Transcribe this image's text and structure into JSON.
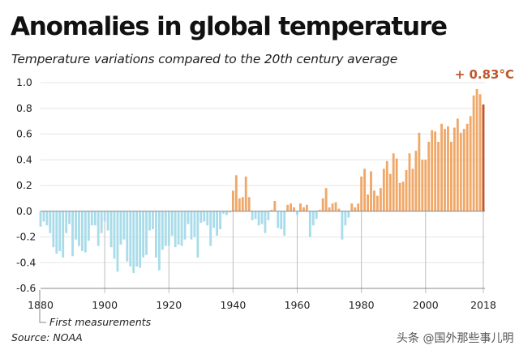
{
  "title": "Anomalies in global temperature",
  "subtitle": "Temperature variations compared to the 20th century average",
  "source": "Source: NOAA",
  "watermark": "头条 @国外那些事儿明",
  "colors": {
    "negative": "#a9dcea",
    "positive": "#f0a868",
    "latest": "#c0572c",
    "highlight_text": "#c0572c",
    "axis": "#888888",
    "grid": "#e6e6e6",
    "text": "#222222"
  },
  "chart_data": {
    "type": "bar",
    "title": "Anomalies in global temperature",
    "subtitle": "Temperature variations compared to the 20th century average",
    "xlabel": "",
    "ylabel": "",
    "unit": "°C",
    "ylim": [
      -0.6,
      1.0
    ],
    "yticks": [
      1.0,
      0.8,
      0.6,
      0.4,
      0.2,
      0.0,
      -0.2,
      -0.4,
      -0.6
    ],
    "ytick_labels": [
      "1.0",
      "0.8",
      "0.6",
      "0.4",
      "0.2",
      "0.0",
      "-0.2",
      "-0.4",
      "-0.6"
    ],
    "xticks": [
      1880,
      1900,
      1920,
      1940,
      1960,
      1980,
      2000,
      2018
    ],
    "xtick_labels": [
      "1880",
      "1900",
      "1920",
      "1940",
      "1960",
      "1980",
      "2000",
      "2018"
    ],
    "grid": false,
    "highlight": {
      "year": 2018,
      "label": "+ 0.83°C"
    },
    "annotation": {
      "year": 1880,
      "label": "First measurements"
    },
    "start_year": 1880,
    "end_year": 2018,
    "values": [
      -0.12,
      -0.08,
      -0.11,
      -0.17,
      -0.28,
      -0.33,
      -0.31,
      -0.36,
      -0.17,
      -0.1,
      -0.35,
      -0.22,
      -0.27,
      -0.31,
      -0.32,
      -0.23,
      -0.11,
      -0.11,
      -0.27,
      -0.17,
      -0.08,
      -0.15,
      -0.28,
      -0.37,
      -0.47,
      -0.26,
      -0.22,
      -0.39,
      -0.43,
      -0.48,
      -0.43,
      -0.44,
      -0.36,
      -0.34,
      -0.15,
      -0.14,
      -0.36,
      -0.46,
      -0.3,
      -0.27,
      -0.27,
      -0.19,
      -0.28,
      -0.26,
      -0.27,
      -0.22,
      -0.1,
      -0.22,
      -0.2,
      -0.36,
      -0.09,
      -0.08,
      -0.11,
      -0.27,
      -0.13,
      -0.19,
      -0.14,
      -0.02,
      -0.03,
      -0.01,
      0.16,
      0.28,
      0.1,
      0.11,
      0.27,
      0.11,
      -0.07,
      -0.06,
      -0.11,
      -0.1,
      -0.17,
      -0.07,
      0.01,
      0.08,
      -0.13,
      -0.14,
      -0.19,
      0.05,
      0.06,
      0.03,
      -0.03,
      0.06,
      0.03,
      0.05,
      -0.2,
      -0.11,
      -0.06,
      0.01,
      0.1,
      0.18,
      0.03,
      0.06,
      0.07,
      0.02,
      -0.22,
      -0.11,
      -0.05,
      0.06,
      0.03,
      0.06,
      0.27,
      0.33,
      0.13,
      0.31,
      0.16,
      0.12,
      0.18,
      0.33,
      0.39,
      0.29,
      0.45,
      0.41,
      0.22,
      0.23,
      0.32,
      0.45,
      0.33,
      0.47,
      0.61,
      0.4,
      0.4,
      0.54,
      0.63,
      0.62,
      0.54,
      0.68,
      0.64,
      0.66,
      0.54,
      0.65,
      0.72,
      0.61,
      0.64,
      0.68,
      0.74,
      0.9,
      0.95,
      0.91,
      0.83
    ]
  }
}
